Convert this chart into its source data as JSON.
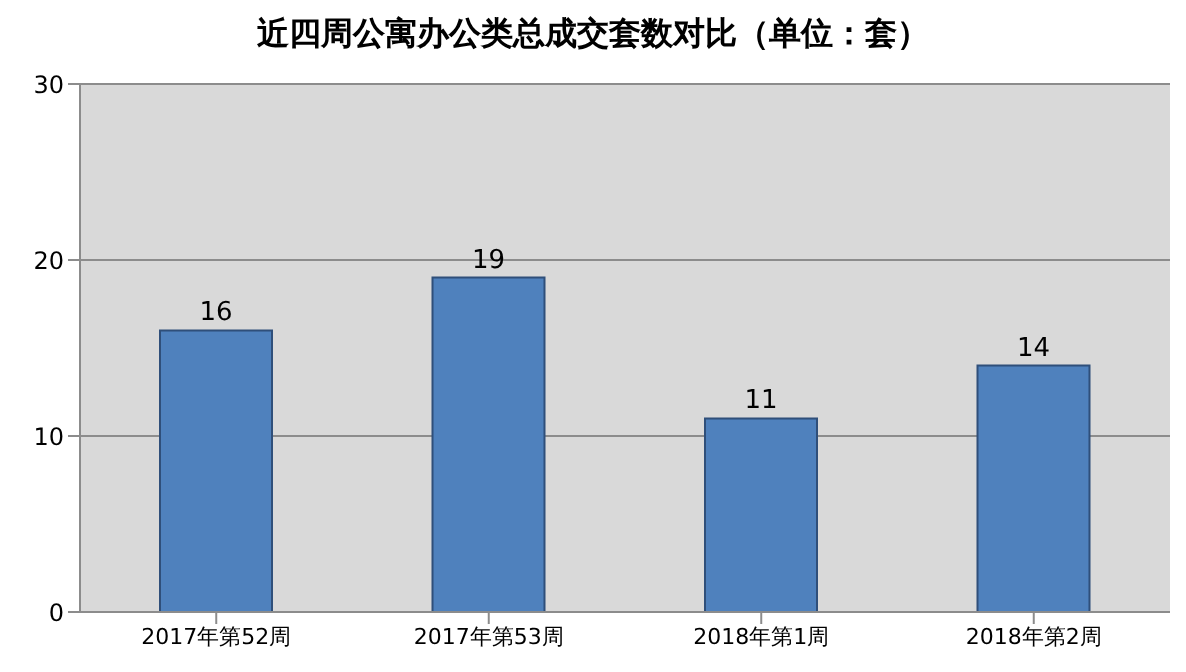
{
  "chart_data": {
    "type": "bar",
    "title": "近四周公寓办公类总成交套数对比（单位：套）",
    "categories": [
      "2017年第52周",
      "2017年第53周",
      "2018年第1周",
      "2018年第2周"
    ],
    "values": [
      16,
      19,
      11,
      14
    ],
    "color": "#4f81bd",
    "ylim": [
      0,
      30
    ],
    "yticks": [
      0,
      10,
      20,
      30
    ],
    "grid": "y",
    "data_labels": true
  }
}
